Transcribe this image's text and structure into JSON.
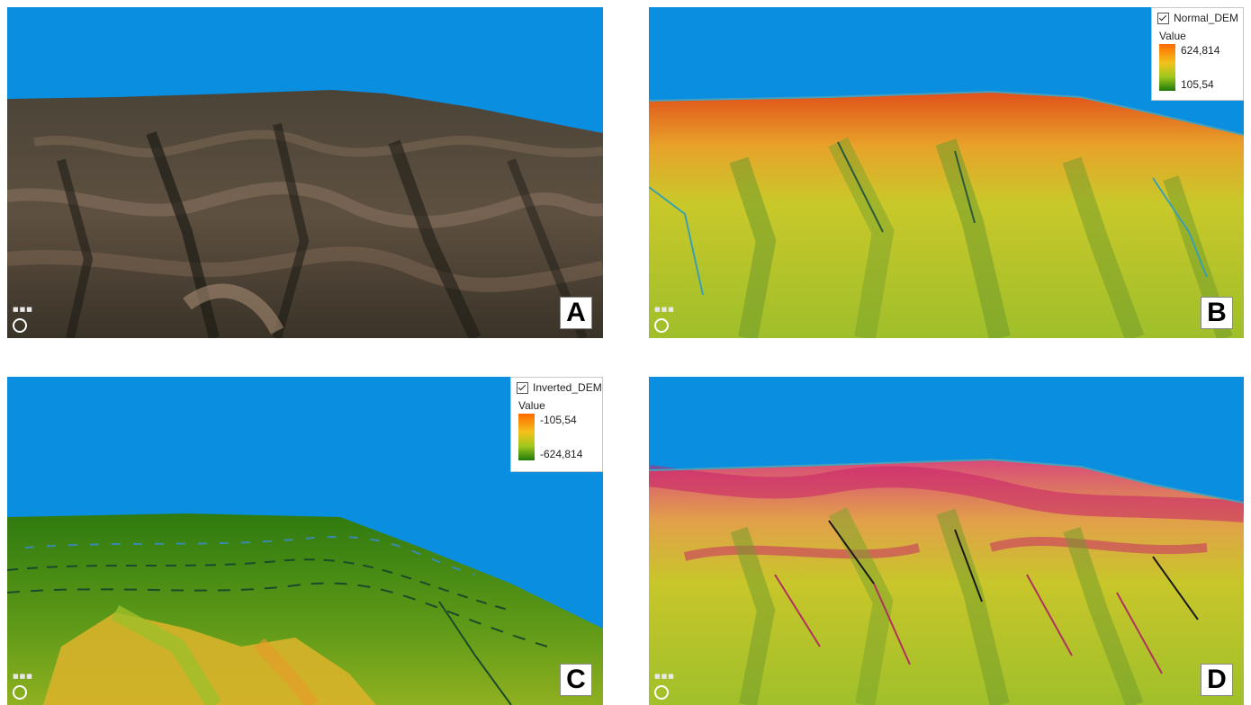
{
  "panels": [
    {
      "id": "A",
      "label": "A",
      "style": "satellite-imagery"
    },
    {
      "id": "B",
      "label": "B",
      "style": "normal-dem",
      "legend": {
        "layer_name": "Normal_DEM",
        "checked": true,
        "title": "Value",
        "max": "624,814",
        "min": "105,54"
      }
    },
    {
      "id": "C",
      "label": "C",
      "style": "inverted-dem",
      "legend": {
        "layer_name": "Inverted_DEM",
        "checked": true,
        "title": "Value",
        "max": "-105,54",
        "min": "-624,814"
      }
    },
    {
      "id": "D",
      "label": "D",
      "style": "dem-with-overlay"
    }
  ],
  "colors": {
    "sky": "#0a8ee0",
    "ramp_high": "#ff6a00",
    "ramp_mid": "#f3c21c",
    "ramp_low": "#1f7a0a",
    "overlay": "#c8206a"
  }
}
